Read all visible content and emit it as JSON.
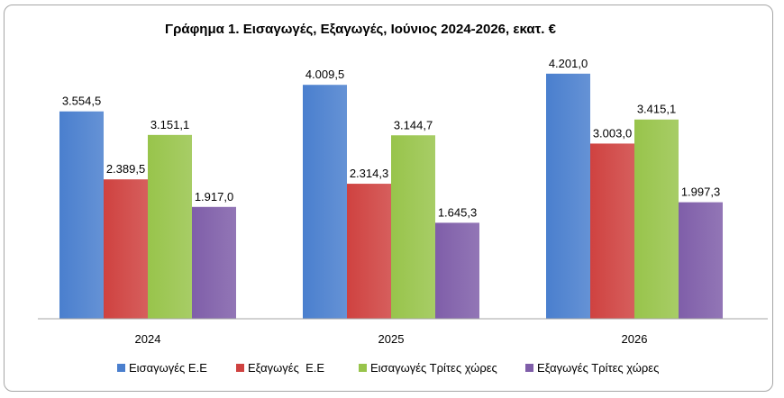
{
  "chart_data": {
    "type": "bar",
    "title": "Γράφημα 1. Εισαγωγές, Εξαγωγές, Ιούνιος 2024-2026, εκατ. €",
    "categories": [
      "2024",
      "2025",
      "2026"
    ],
    "series": [
      {
        "name": "Εισαγωγές Ε.Ε",
        "values": [
          3554.5,
          4009.5,
          4201.0
        ],
        "labels": [
          "3.554,5",
          "4.009,5",
          "4.201,0"
        ],
        "color": "#4a7fce"
      },
      {
        "name": "Εξαγωγές  Ε.Ε",
        "values": [
          2389.5,
          2314.3,
          3003.0
        ],
        "labels": [
          "2.389,5",
          "2.314,3",
          "3.003,0"
        ],
        "color": "#cf4240"
      },
      {
        "name": "Εισαγωγές Τρίτες χώρες",
        "values": [
          3151.1,
          3144.7,
          3415.1
        ],
        "labels": [
          "3.151,1",
          "3.144,7",
          "3.415,1"
        ],
        "color": "#98c44b"
      },
      {
        "name": "Εξαγωγές Τρίτες χώρες",
        "values": [
          1917.0,
          1645.3,
          1997.3
        ],
        "labels": [
          "1.917,0",
          "1.645,3",
          "1.997,3"
        ],
        "color": "#7f5ea9"
      }
    ],
    "ylim": [
      0,
      5000
    ],
    "grid": false,
    "legend_position": "bottom"
  }
}
